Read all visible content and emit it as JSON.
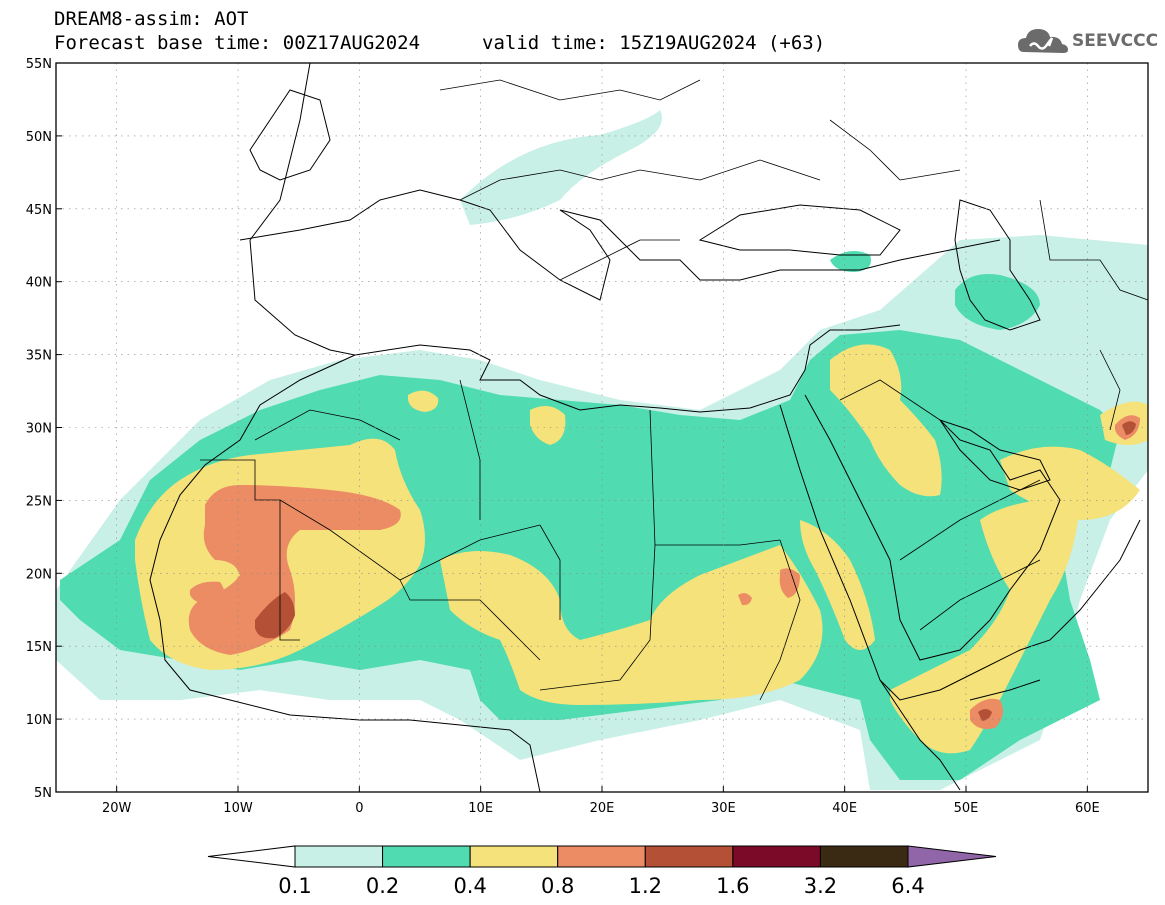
{
  "header": {
    "title_line1": "DREAM8-assim: AOT",
    "title_line2": "Forecast base time: 00Z17AUG2024",
    "valid_time": "valid time: 15Z19AUG2024 (+63)",
    "logo_text": "SEEVCCC"
  },
  "map": {
    "variable": "AOT",
    "lon_range": [
      -25,
      65
    ],
    "lat_range": [
      5,
      55
    ],
    "lat_labels": [
      "55N",
      "50N",
      "45N",
      "40N",
      "35N",
      "30N",
      "25N",
      "20N",
      "15N",
      "10N",
      "5N"
    ],
    "lon_labels": [
      "20W",
      "10W",
      "0",
      "10E",
      "20E",
      "30E",
      "40E",
      "50E",
      "60E"
    ]
  },
  "legend": {
    "bins": [
      {
        "color": "#c8f0e6"
      },
      {
        "color": "#50dcb0"
      },
      {
        "color": "#f5e27a"
      },
      {
        "color": "#eb8c64"
      },
      {
        "color": "#b45036"
      },
      {
        "color": "#7a0a28"
      },
      {
        "color": "#3a2a14"
      }
    ],
    "over_color": "#9066a8",
    "under_color": "#ffffff",
    "labels": [
      "0.1",
      "0.2",
      "0.4",
      "0.8",
      "1.2",
      "1.6",
      "3.2",
      "6.4"
    ]
  }
}
